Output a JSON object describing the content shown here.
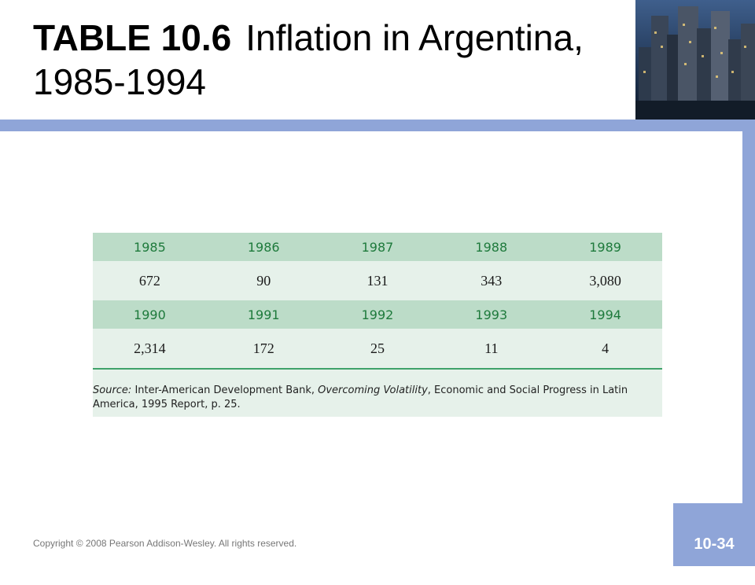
{
  "header": {
    "table_number": "TABLE 10.6",
    "title_text": "Inflation in Argentina, 1985-1994"
  },
  "table": {
    "rows": [
      {
        "kind": "year",
        "cells": [
          "1985",
          "1986",
          "1987",
          "1988",
          "1989"
        ]
      },
      {
        "kind": "value",
        "cells": [
          "672",
          "90",
          "131",
          "343",
          "3,080"
        ]
      },
      {
        "kind": "year",
        "cells": [
          "1990",
          "1991",
          "1992",
          "1993",
          "1994"
        ]
      },
      {
        "kind": "value",
        "cells": [
          "2,314",
          "172",
          "25",
          "11",
          "4"
        ]
      }
    ],
    "source": {
      "label": "Source:",
      "pre": " Inter-American Development Bank, ",
      "italic": "Overcoming Volatility",
      "post": ", Economic and Social Progress in Latin America, 1995 Report, p. 25."
    }
  },
  "footer": {
    "copyright": "Copyright © 2008 Pearson Addison-Wesley. All rights reserved.",
    "slide_number": "10-34"
  },
  "colors": {
    "accent_band": "#8fa5d8",
    "table_header": "#bcdcc8",
    "table_body": "#e6f1ea",
    "year_text": "#1e7a3c"
  }
}
